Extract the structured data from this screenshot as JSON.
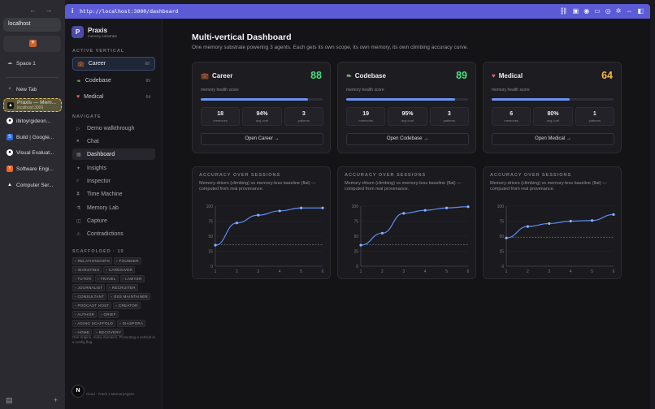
{
  "browser": {
    "nav": "← → ···",
    "url_pill": "localhost",
    "pinned_icon": "claude-favicon",
    "space": "Space 1",
    "new_tab": "New Tab",
    "tabs": [
      {
        "title": "Praxis — Mem...",
        "subtitle": "localhost:3000",
        "icon": "praxis-favicon",
        "active": true
      },
      {
        "title": "ibitoyrgideon...",
        "icon": "github-icon"
      },
      {
        "title": "Build | Google...",
        "icon": "google-ai-studio-icon"
      },
      {
        "title": "Visual Evaluat...",
        "icon": "github-icon"
      },
      {
        "title": "Software Engi...",
        "icon": "y-combinator-icon"
      },
      {
        "title": "Computer Ser...",
        "icon": "triangle-icon"
      }
    ],
    "address": "http://localhost:3000/dashboard"
  },
  "app": {
    "brand": {
      "name": "Praxis",
      "tagline": "memory substrate",
      "logo_letter": "P"
    },
    "active_vertical_label": "ACTIVE VERTICAL",
    "verticals": [
      {
        "label": "Career",
        "count": "88",
        "icon": "briefcase-icon"
      },
      {
        "label": "Codebase",
        "count": "89",
        "icon": "leaf-icon"
      },
      {
        "label": "Medical",
        "count": "64",
        "icon": "heart-icon"
      }
    ],
    "navigate_label": "NAVIGATE",
    "nav": [
      {
        "label": "Demo walkthrough",
        "icon": "play-icon"
      },
      {
        "label": "Chat",
        "icon": "chat-icon"
      },
      {
        "label": "Dashboard",
        "icon": "grid-icon",
        "selected": true
      },
      {
        "label": "Insights",
        "icon": "sparkle-icon"
      },
      {
        "label": "Inspector",
        "icon": "search-icon"
      },
      {
        "label": "Time Machine",
        "icon": "hourglass-icon"
      },
      {
        "label": "Memory Lab",
        "icon": "flask-icon"
      },
      {
        "label": "Capture",
        "icon": "capture-icon"
      },
      {
        "label": "Contradictions",
        "icon": "warning-icon"
      }
    ],
    "scaffolded_label": "SCAFFOLDED · 19",
    "scaffolded": [
      "RELATIONSHIPS",
      "FOUNDER",
      "INVESTING",
      "CAREGIVER",
      "TUTOR",
      "TRAVEL",
      "LAWYER",
      "JOURNALIST",
      "RECRUITER",
      "CONSULTANT",
      "OSS MAINTAINER",
      "PODCAST HOST",
      "CREATOR",
      "AUTHOR",
      "GRIEF",
      "AGING SCAFFOLD",
      "DIASPORA",
      "HOME",
      "RECOVERY"
    ],
    "footnote": "One engine, many domains. Promoting a vertical is a config flag.",
    "avatar_letter": "N",
    "bottom_note": "cloud · Track 1 MemoryAgent"
  },
  "dashboard": {
    "title": "Multi-vertical Dashboard",
    "subtitle": "One memory substrate powering 3 agents. Each gets its own scope, its own memory, its own climbing accuracy curve.",
    "health_label": "memory health score",
    "stat_labels": [
      "memories",
      "avg conf",
      "patterns"
    ],
    "cards": [
      {
        "name": "Career",
        "score": "88",
        "score_color": "#4ade80",
        "health": 0.88,
        "memories": "18",
        "avg_conf": "94%",
        "patterns": "3",
        "open": "Open Career →",
        "icon": "briefcase-icon"
      },
      {
        "name": "Codebase",
        "score": "89",
        "score_color": "#4ade80",
        "health": 0.89,
        "memories": "19",
        "avg_conf": "95%",
        "patterns": "3",
        "open": "Open Codebase →",
        "icon": "leaf-icon"
      },
      {
        "name": "Medical",
        "score": "64",
        "score_color": "#f5b942",
        "health": 0.64,
        "memories": "6",
        "avg_conf": "80%",
        "patterns": "1",
        "open": "Open Medical →",
        "icon": "heart-icon"
      }
    ],
    "charts_title": "ACCURACY OVER SESSIONS",
    "charts_desc": "Memory-driven (climbing) vs memory-less baseline (flat) — computed from real provenance."
  },
  "chart_data": [
    {
      "type": "line",
      "x": [
        1,
        2,
        3,
        4,
        5,
        6
      ],
      "ylim": [
        0,
        100
      ],
      "yticks": [
        0,
        25,
        50,
        75,
        100
      ],
      "series": [
        {
          "values": [
            35,
            72,
            85,
            92,
            97,
            97
          ]
        },
        {
          "values": [
            36,
            36,
            36,
            36,
            36,
            36
          ]
        }
      ]
    },
    {
      "type": "line",
      "x": [
        1,
        2,
        3,
        4,
        5,
        6
      ],
      "ylim": [
        0,
        100
      ],
      "yticks": [
        0,
        25,
        50,
        75,
        100
      ],
      "series": [
        {
          "values": [
            35,
            55,
            88,
            93,
            97,
            99
          ]
        },
        {
          "values": [
            36,
            36,
            36,
            36,
            36,
            36
          ]
        }
      ]
    },
    {
      "type": "line",
      "x": [
        1,
        2,
        3,
        4,
        5,
        6
      ],
      "ylim": [
        0,
        100
      ],
      "yticks": [
        0,
        25,
        50,
        75,
        100
      ],
      "series": [
        {
          "values": [
            47,
            66,
            71,
            75,
            76,
            86
          ]
        },
        {
          "values": [
            48,
            48,
            48,
            48,
            48,
            48
          ]
        }
      ]
    }
  ],
  "colors": {
    "accent": "#5b8def",
    "bar_fill": "#6b93f0",
    "baseline": "#6a6a74"
  }
}
